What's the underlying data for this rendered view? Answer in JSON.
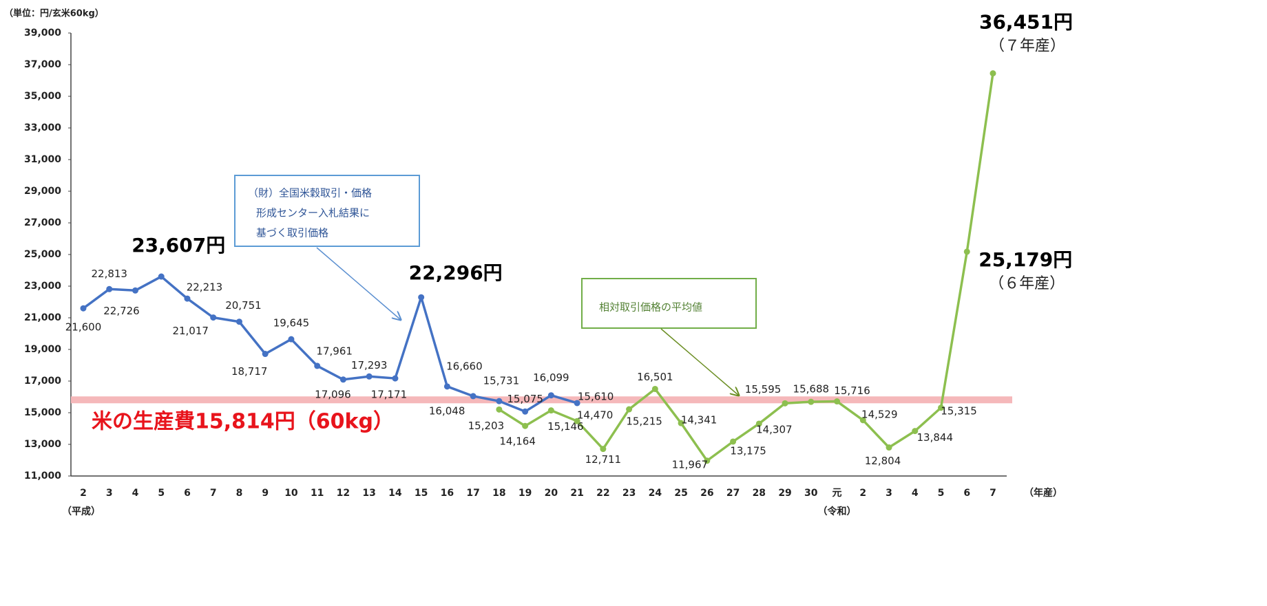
{
  "chart_data": {
    "type": "line",
    "unit_label": "（単位：円/玄米60kg）",
    "x_axis_label": "（年産）",
    "era_labels": {
      "heisei": "（平成）",
      "reiwa": "（令和）"
    },
    "categories": [
      "2",
      "3",
      "4",
      "5",
      "6",
      "7",
      "8",
      "9",
      "10",
      "11",
      "12",
      "13",
      "14",
      "15",
      "16",
      "17",
      "18",
      "19",
      "20",
      "21",
      "22",
      "23",
      "24",
      "25",
      "26",
      "27",
      "28",
      "29",
      "30",
      "元",
      "2",
      "3",
      "4",
      "5",
      "6",
      "7"
    ],
    "series": [
      {
        "color": "#4472c4",
        "values": [
          21600,
          22813,
          22726,
          23607,
          22213,
          21017,
          20751,
          18717,
          19645,
          17961,
          17096,
          17293,
          17171,
          22296,
          16660,
          16048,
          15731,
          15075,
          16099,
          15610,
          null,
          null,
          null,
          null,
          null,
          null,
          null,
          null,
          null,
          null,
          null,
          null,
          null,
          null,
          null,
          null
        ],
        "value_labels": [
          "21,600",
          "22,813",
          "22,726",
          "23,607円",
          "22,213",
          "21,017",
          "20,751",
          "18,717",
          "19,645",
          "17,961",
          "17,096",
          "17,293",
          "17,171",
          "22,296円",
          "16,660",
          "16,048",
          "15,731",
          "15,075",
          "16,099",
          "15,610",
          null,
          null,
          null,
          null,
          null,
          null,
          null,
          null,
          null,
          null,
          null,
          null,
          null,
          null,
          null,
          null
        ]
      },
      {
        "color": "#8dbf4f",
        "values": [
          null,
          null,
          null,
          null,
          null,
          null,
          null,
          null,
          null,
          null,
          null,
          null,
          null,
          null,
          null,
          null,
          15203,
          14164,
          15146,
          14470,
          12711,
          15215,
          16501,
          14341,
          11967,
          13175,
          14307,
          15595,
          15688,
          15716,
          14529,
          12804,
          13844,
          15315,
          25179,
          36451
        ],
        "value_labels": [
          null,
          null,
          null,
          null,
          null,
          null,
          null,
          null,
          null,
          null,
          null,
          null,
          null,
          null,
          null,
          null,
          "15,203",
          "14,164",
          "15,146",
          "14,470",
          "12,711",
          "15,215",
          "16,501",
          "14,341",
          "11,967",
          "13,175",
          "14,307",
          "15,595",
          "15,688",
          "15,716",
          "14,529",
          "12,804",
          "13,844",
          "15,315",
          "25,179円",
          "36,451円"
        ]
      }
    ],
    "production_year_notes": [
      "（６年産）",
      "（７年産）"
    ],
    "reference_line": {
      "value": 15814,
      "label": "米の生産費15,814円（60kg）",
      "color": "#f5b8ba"
    },
    "annotations": [
      {
        "lines": [
          "（財）全国米穀取引・価格",
          "形成センター入札結果に",
          "基づく取引価格"
        ]
      },
      {
        "lines": [
          "相対取引価格の平均値"
        ]
      }
    ],
    "ylim": [
      11000,
      39000
    ],
    "yticks": [
      {
        "value": 11000,
        "label": "11,000"
      },
      {
        "value": 13000,
        "label": "13,000"
      },
      {
        "value": 15000,
        "label": "15,000"
      },
      {
        "value": 17000,
        "label": "17,000"
      },
      {
        "value": 19000,
        "label": "19,000"
      },
      {
        "value": 21000,
        "label": "21,000"
      },
      {
        "value": 23000,
        "label": "23,000"
      },
      {
        "value": 25000,
        "label": "25,000"
      },
      {
        "value": 27000,
        "label": "27,000"
      },
      {
        "value": 29000,
        "label": "29,000"
      },
      {
        "value": 31000,
        "label": "31,000"
      },
      {
        "value": 33000,
        "label": "33,000"
      },
      {
        "value": 35000,
        "label": "35,000"
      },
      {
        "value": 37000,
        "label": "37,000"
      },
      {
        "value": 39000,
        "label": "39,000"
      }
    ],
    "grid": false
  }
}
